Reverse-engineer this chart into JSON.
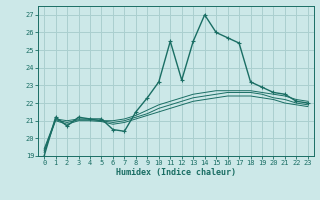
{
  "xlabel": "Humidex (Indice chaleur)",
  "background_color": "#cce8e8",
  "grid_color": "#aacfcf",
  "line_color": "#1a6e64",
  "xlim": [
    -0.5,
    23.5
  ],
  "ylim": [
    19,
    27.5
  ],
  "yticks": [
    19,
    20,
    21,
    22,
    23,
    24,
    25,
    26,
    27
  ],
  "xticks": [
    0,
    1,
    2,
    3,
    4,
    5,
    6,
    7,
    8,
    9,
    10,
    11,
    12,
    13,
    14,
    15,
    16,
    17,
    18,
    19,
    20,
    21,
    22,
    23
  ],
  "lines": [
    {
      "x": [
        0,
        1,
        2,
        3,
        4,
        5,
        6,
        7,
        8,
        9,
        10,
        11,
        12,
        13,
        14,
        15,
        16,
        17,
        18,
        19,
        20,
        21,
        22,
        23
      ],
      "y": [
        19.0,
        21.2,
        20.7,
        21.2,
        21.1,
        21.1,
        20.5,
        20.4,
        21.5,
        22.3,
        23.2,
        25.5,
        23.3,
        25.5,
        27.0,
        26.0,
        25.7,
        25.4,
        23.2,
        22.9,
        22.6,
        22.5,
        22.1,
        22.0
      ],
      "marker": true
    },
    {
      "x": [
        0,
        1,
        2,
        3,
        4,
        5,
        6,
        7,
        8,
        9,
        10,
        11,
        12,
        13,
        14,
        15,
        16,
        17,
        18,
        19,
        20,
        21,
        22,
        23
      ],
      "y": [
        19.4,
        21.1,
        21.0,
        21.1,
        21.1,
        21.0,
        21.0,
        21.1,
        21.3,
        21.6,
        21.9,
        22.1,
        22.3,
        22.5,
        22.6,
        22.7,
        22.7,
        22.7,
        22.7,
        22.6,
        22.5,
        22.4,
        22.2,
        22.1
      ],
      "marker": false
    },
    {
      "x": [
        0,
        1,
        2,
        3,
        4,
        5,
        6,
        7,
        8,
        9,
        10,
        11,
        12,
        13,
        14,
        15,
        16,
        17,
        18,
        19,
        20,
        21,
        22,
        23
      ],
      "y": [
        19.3,
        21.05,
        20.9,
        21.05,
        21.05,
        21.0,
        20.9,
        21.0,
        21.2,
        21.4,
        21.7,
        21.9,
        22.1,
        22.3,
        22.4,
        22.5,
        22.6,
        22.6,
        22.6,
        22.5,
        22.3,
        22.2,
        22.0,
        21.9
      ],
      "marker": false
    },
    {
      "x": [
        0,
        1,
        2,
        3,
        4,
        5,
        6,
        7,
        8,
        9,
        10,
        11,
        12,
        13,
        14,
        15,
        16,
        17,
        18,
        19,
        20,
        21,
        22,
        23
      ],
      "y": [
        19.2,
        21.0,
        20.8,
        21.0,
        21.0,
        20.95,
        20.8,
        20.9,
        21.1,
        21.3,
        21.5,
        21.7,
        21.9,
        22.1,
        22.2,
        22.3,
        22.4,
        22.4,
        22.4,
        22.3,
        22.2,
        22.0,
        21.9,
        21.8
      ],
      "marker": false
    }
  ]
}
